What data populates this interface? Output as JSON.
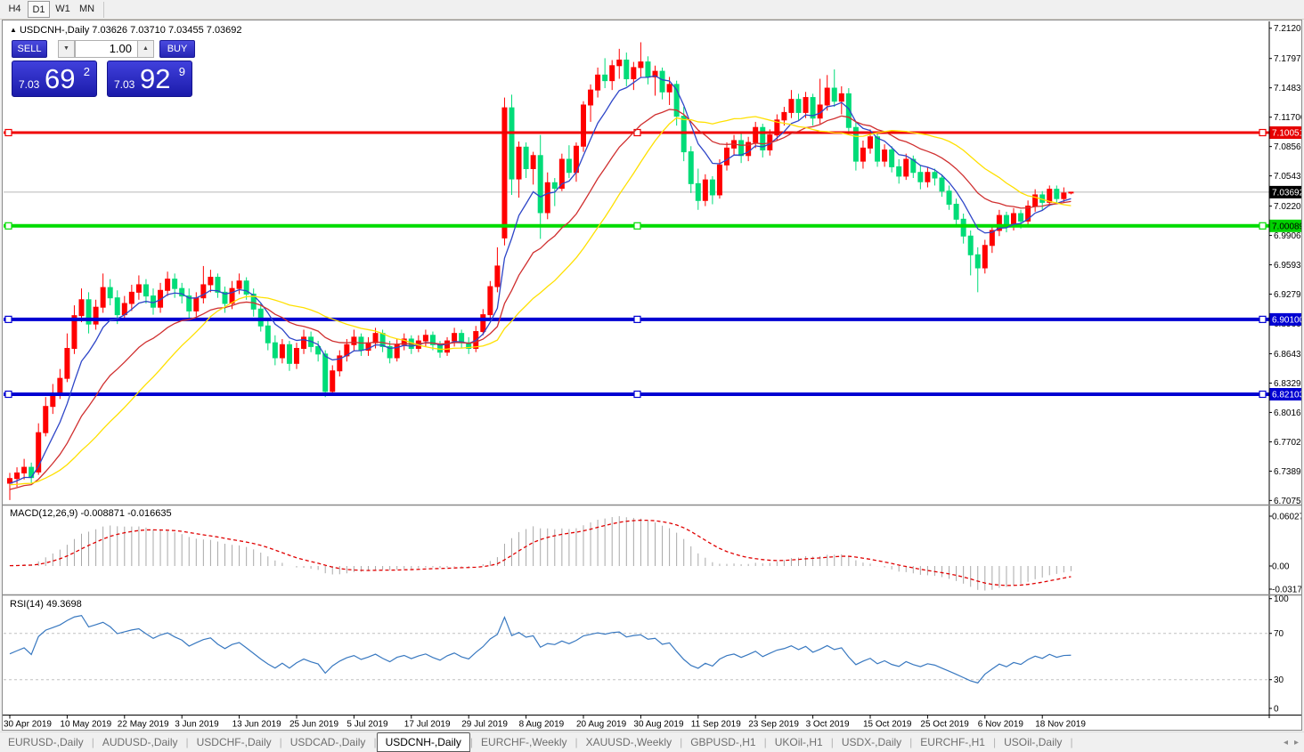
{
  "toolbar": {
    "timeframes": [
      "H4",
      "D1",
      "W1",
      "MN"
    ],
    "active": "D1"
  },
  "chart": {
    "title_arrow": "▲",
    "symbol_label": "USDCNH-,Daily",
    "ohlc": {
      "open": "7.03626",
      "high": "7.03710",
      "low": "7.03455",
      "close": "7.03692"
    },
    "trade_panel": {
      "sell_label": "SELL",
      "buy_label": "BUY",
      "volume": "1.00",
      "down_arrow": "▼",
      "up_arrow": "▲",
      "sell_price": {
        "small": "7.03",
        "big": "69",
        "sup": "2"
      },
      "buy_price": {
        "small": "7.03",
        "big": "92",
        "sup": "9"
      }
    },
    "price_axis_ticks": [
      "7.21200",
      "7.17970",
      "7.14835",
      "7.11700",
      "7.08565",
      "7.05430",
      "7.02200",
      "6.99065",
      "6.95930",
      "6.92795",
      "6.89660",
      "6.86430",
      "6.83295",
      "6.80160",
      "6.77020",
      "6.73890",
      "6.70755"
    ],
    "badges": [
      {
        "text": "7.10051",
        "bg": "#e60000",
        "fg": "#ffffff"
      },
      {
        "text": "7.03692",
        "bg": "#000000",
        "fg": "#ffffff"
      },
      {
        "text": "7.00089",
        "bg": "#00d200",
        "fg": "#000000"
      },
      {
        "text": "6.90100",
        "bg": "#0000d2",
        "fg": "#ffffff"
      },
      {
        "text": "6.82103",
        "bg": "#0000d2",
        "fg": "#ffffff"
      }
    ],
    "hlines": [
      {
        "price": 7.10051,
        "color": "#f00000",
        "w": 3
      },
      {
        "price": 7.00089,
        "color": "#00dc00",
        "w": 4
      },
      {
        "price": 6.901,
        "color": "#0000d2",
        "w": 4
      },
      {
        "price": 6.82103,
        "color": "#0000d2",
        "w": 4
      }
    ],
    "current_price": 7.03692
  },
  "chart_data": {
    "type": "candlestick",
    "symbol": "USDCNH",
    "timeframe": "Daily",
    "candle_colors": {
      "up": "#ff0000",
      "down": "#00dc78"
    },
    "moving_averages": [
      {
        "kind": "ema",
        "period": 7,
        "color": "#2e46c8"
      },
      {
        "kind": "ema",
        "period": 18,
        "color": "#d03030"
      },
      {
        "kind": "sma",
        "period": 25,
        "color": "#ffe000"
      }
    ],
    "bars": [
      [
        6.726,
        6.737,
        6.708,
        6.731
      ],
      [
        6.731,
        6.743,
        6.722,
        6.737
      ],
      [
        6.737,
        6.752,
        6.73,
        6.743
      ],
      [
        6.743,
        6.748,
        6.726,
        6.732
      ],
      [
        6.738,
        6.79,
        6.735,
        6.78
      ],
      [
        6.78,
        6.818,
        6.776,
        6.808
      ],
      [
        6.808,
        6.832,
        6.8,
        6.822
      ],
      [
        6.822,
        6.848,
        6.816,
        6.838
      ],
      [
        6.838,
        6.886,
        6.834,
        6.87
      ],
      [
        6.87,
        6.916,
        6.864,
        6.905
      ],
      [
        6.905,
        6.934,
        6.898,
        6.922
      ],
      [
        6.922,
        6.93,
        6.886,
        6.896
      ],
      [
        6.896,
        6.922,
        6.89,
        6.914
      ],
      [
        6.914,
        6.95,
        6.908,
        6.935
      ],
      [
        6.935,
        6.944,
        6.916,
        6.924
      ],
      [
        6.924,
        6.932,
        6.896,
        6.906
      ],
      [
        6.906,
        6.926,
        6.9,
        6.918
      ],
      [
        6.918,
        6.938,
        6.91,
        6.93
      ],
      [
        6.93,
        6.948,
        6.922,
        6.938
      ],
      [
        6.938,
        6.944,
        6.918,
        6.926
      ],
      [
        6.926,
        6.934,
        6.906,
        6.914
      ],
      [
        6.914,
        6.94,
        6.908,
        6.932
      ],
      [
        6.932,
        6.952,
        6.926,
        6.944
      ],
      [
        6.944,
        6.95,
        6.924,
        6.934
      ],
      [
        6.934,
        6.94,
        6.918,
        6.926
      ],
      [
        6.926,
        6.934,
        6.902,
        6.91
      ],
      [
        6.91,
        6.93,
        6.904,
        6.924
      ],
      [
        6.924,
        6.958,
        6.918,
        6.938
      ],
      [
        6.938,
        6.954,
        6.93,
        6.946
      ],
      [
        6.946,
        6.95,
        6.924,
        6.93
      ],
      [
        6.93,
        6.936,
        6.908,
        6.918
      ],
      [
        6.918,
        6.942,
        6.912,
        6.934
      ],
      [
        6.934,
        6.95,
        6.928,
        6.942
      ],
      [
        6.942,
        6.946,
        6.922,
        6.928
      ],
      [
        6.928,
        6.934,
        6.904,
        6.912
      ],
      [
        6.912,
        6.918,
        6.888,
        6.894
      ],
      [
        6.894,
        6.902,
        6.868,
        6.876
      ],
      [
        6.876,
        6.884,
        6.852,
        6.86
      ],
      [
        6.86,
        6.88,
        6.854,
        6.874
      ],
      [
        6.874,
        6.878,
        6.846,
        6.854
      ],
      [
        6.854,
        6.876,
        6.848,
        6.87
      ],
      [
        6.87,
        6.89,
        6.864,
        6.882
      ],
      [
        6.882,
        6.888,
        6.866,
        6.872
      ],
      [
        6.872,
        6.878,
        6.856,
        6.864
      ],
      [
        6.864,
        6.868,
        6.818,
        6.824
      ],
      [
        6.824,
        6.852,
        6.82,
        6.846
      ],
      [
        6.846,
        6.868,
        6.84,
        6.862
      ],
      [
        6.862,
        6.88,
        6.856,
        6.874
      ],
      [
        6.874,
        6.89,
        6.868,
        6.882
      ],
      [
        6.882,
        6.886,
        6.862,
        6.868
      ],
      [
        6.868,
        6.882,
        6.862,
        6.876
      ],
      [
        6.876,
        6.892,
        6.87,
        6.886
      ],
      [
        6.886,
        6.89,
        6.866,
        6.872
      ],
      [
        6.872,
        6.878,
        6.854,
        6.86
      ],
      [
        6.86,
        6.88,
        6.856,
        6.874
      ],
      [
        6.874,
        6.886,
        6.868,
        6.88
      ],
      [
        6.88,
        6.884,
        6.864,
        6.87
      ],
      [
        6.87,
        6.884,
        6.866,
        6.878
      ],
      [
        6.878,
        6.89,
        6.872,
        6.884
      ],
      [
        6.884,
        6.888,
        6.868,
        6.874
      ],
      [
        6.874,
        6.878,
        6.86,
        6.866
      ],
      [
        6.866,
        6.882,
        6.862,
        6.878
      ],
      [
        6.878,
        6.892,
        6.872,
        6.886
      ],
      [
        6.886,
        6.89,
        6.87,
        6.876
      ],
      [
        6.876,
        6.882,
        6.864,
        6.87
      ],
      [
        6.87,
        6.894,
        6.866,
        6.888
      ],
      [
        6.888,
        6.912,
        6.884,
        6.906
      ],
      [
        6.906,
        6.942,
        6.9,
        6.936
      ],
      [
        6.936,
        6.978,
        6.93,
        6.958
      ],
      [
        6.988,
        7.138,
        6.98,
        7.127
      ],
      [
        7.127,
        7.141,
        7.034,
        7.051
      ],
      [
        7.051,
        7.091,
        7.031,
        7.085
      ],
      [
        7.085,
        7.09,
        7.052,
        7.062
      ],
      [
        7.062,
        7.08,
        7.045,
        7.076
      ],
      [
        7.076,
        7.098,
        6.987,
        7.015
      ],
      [
        7.015,
        7.058,
        7.008,
        7.047
      ],
      [
        7.047,
        7.052,
        7.022,
        7.041
      ],
      [
        7.041,
        7.078,
        7.038,
        7.072
      ],
      [
        7.072,
        7.087,
        7.052,
        7.058
      ],
      [
        7.058,
        7.09,
        7.048,
        7.086
      ],
      [
        7.086,
        7.134,
        7.08,
        7.13
      ],
      [
        7.13,
        7.152,
        7.112,
        7.146
      ],
      [
        7.146,
        7.17,
        7.138,
        7.162
      ],
      [
        7.162,
        7.18,
        7.148,
        7.156
      ],
      [
        7.156,
        7.178,
        7.146,
        7.172
      ],
      [
        7.172,
        7.19,
        7.158,
        7.178
      ],
      [
        7.178,
        7.186,
        7.15,
        7.158
      ],
      [
        7.158,
        7.176,
        7.146,
        7.17
      ],
      [
        7.17,
        7.197,
        7.16,
        7.176
      ],
      [
        7.176,
        7.182,
        7.152,
        7.16
      ],
      [
        7.16,
        7.172,
        7.14,
        7.166
      ],
      [
        7.166,
        7.17,
        7.136,
        7.144
      ],
      [
        7.144,
        7.16,
        7.13,
        7.152
      ],
      [
        7.152,
        7.156,
        7.108,
        7.118
      ],
      [
        7.118,
        7.128,
        7.07,
        7.08
      ],
      [
        7.08,
        7.086,
        7.036,
        7.046
      ],
      [
        7.046,
        7.062,
        7.018,
        7.028
      ],
      [
        7.028,
        7.056,
        7.022,
        7.05
      ],
      [
        7.05,
        7.054,
        7.024,
        7.034
      ],
      [
        7.034,
        7.072,
        7.03,
        7.066
      ],
      [
        7.066,
        7.09,
        7.06,
        7.084
      ],
      [
        7.084,
        7.098,
        7.076,
        7.092
      ],
      [
        7.092,
        7.1,
        7.068,
        7.076
      ],
      [
        7.076,
        7.096,
        7.07,
        7.09
      ],
      [
        7.09,
        7.112,
        7.084,
        7.106
      ],
      [
        7.106,
        7.11,
        7.074,
        7.082
      ],
      [
        7.082,
        7.104,
        7.076,
        7.098
      ],
      [
        7.098,
        7.12,
        7.092,
        7.114
      ],
      [
        7.114,
        7.128,
        7.108,
        7.122
      ],
      [
        7.122,
        7.146,
        7.116,
        7.136
      ],
      [
        7.136,
        7.142,
        7.114,
        7.122
      ],
      [
        7.122,
        7.144,
        7.116,
        7.138
      ],
      [
        7.138,
        7.142,
        7.108,
        7.116
      ],
      [
        7.116,
        7.158,
        7.11,
        7.13
      ],
      [
        7.13,
        7.162,
        7.124,
        7.148
      ],
      [
        7.148,
        7.168,
        7.128,
        7.134
      ],
      [
        7.134,
        7.15,
        7.12,
        7.142
      ],
      [
        7.142,
        7.148,
        7.1,
        7.106
      ],
      [
        7.106,
        7.112,
        7.06,
        7.07
      ],
      [
        7.07,
        7.092,
        7.062,
        7.084
      ],
      [
        7.084,
        7.104,
        7.078,
        7.096
      ],
      [
        7.096,
        7.1,
        7.064,
        7.07
      ],
      [
        7.07,
        7.088,
        7.064,
        7.082
      ],
      [
        7.082,
        7.086,
        7.058,
        7.064
      ],
      [
        7.064,
        7.072,
        7.046,
        7.054
      ],
      [
        7.054,
        7.078,
        7.05,
        7.072
      ],
      [
        7.072,
        7.076,
        7.052,
        7.058
      ],
      [
        7.058,
        7.066,
        7.04,
        7.048
      ],
      [
        7.048,
        7.064,
        7.042,
        7.058
      ],
      [
        7.058,
        7.062,
        7.044,
        7.052
      ],
      [
        7.052,
        7.056,
        7.032,
        7.038
      ],
      [
        7.038,
        7.044,
        7.018,
        7.024
      ],
      [
        7.024,
        7.03,
        7.0,
        7.008
      ],
      [
        7.008,
        7.014,
        6.982,
        6.99
      ],
      [
        6.99,
        6.996,
        6.948,
        6.97
      ],
      [
        6.97,
        6.978,
        6.93,
        6.956
      ],
      [
        6.956,
        6.986,
        6.95,
        6.98
      ],
      [
        6.98,
        7.002,
        6.972,
        6.996
      ],
      [
        6.996,
        7.018,
        6.99,
        7.012
      ],
      [
        7.012,
        7.016,
        6.994,
        7.0
      ],
      [
        7.0,
        7.02,
        6.996,
        7.014
      ],
      [
        7.014,
        7.018,
        6.998,
        7.006
      ],
      [
        7.006,
        7.028,
        7.002,
        7.022
      ],
      [
        7.022,
        7.04,
        7.016,
        7.034
      ],
      [
        7.034,
        7.038,
        7.018,
        7.026
      ],
      [
        7.026,
        7.044,
        7.022,
        7.04
      ],
      [
        7.04,
        7.044,
        7.024,
        7.03
      ],
      [
        7.03,
        7.042,
        7.026,
        7.036
      ],
      [
        7.03626,
        7.0371,
        7.03455,
        7.03692
      ]
    ],
    "macd": {
      "label": "MACD(12,26,9)",
      "fast": 12,
      "slow": 26,
      "signal": 9,
      "value_main": "-0.008871",
      "value_signal": "-0.016635",
      "axis": [
        "0.060273",
        "0.00",
        "-0.031725"
      ],
      "hist_color": "#a8a8a8",
      "signal_color": "#e00000"
    },
    "rsi": {
      "label": "RSI(14)",
      "period": 14,
      "value": "49.3698",
      "axis": [
        "100",
        "70",
        "30",
        "0"
      ],
      "levels": [
        70,
        30
      ],
      "line_color": "#3878c0"
    }
  },
  "date_axis": {
    "labels": [
      "30 Apr 2019",
      "10 May 2019",
      "22 May 2019",
      "3 Jun 2019",
      "13 Jun 2019",
      "25 Jun 2019",
      "5 Jul 2019",
      "17 Jul 2019",
      "29 Jul 2019",
      "8 Aug 2019",
      "20 Aug 2019",
      "30 Aug 2019",
      "11 Sep 2019",
      "23 Sep 2019",
      "3 Oct 2019",
      "15 Oct 2019",
      "25 Oct 2019",
      "6 Nov 2019",
      "18 Nov 2019"
    ]
  },
  "tabs": {
    "items": [
      "EURUSD-,Daily",
      "AUDUSD-,Daily",
      "USDCHF-,Daily",
      "USDCAD-,Daily",
      "USDCNH-,Daily",
      "EURCHF-,Weekly",
      "XAUUSD-,Weekly",
      "GBPUSD-,H1",
      "UKOil-,H1",
      "USDX-,Daily",
      "EURCHF-,H1",
      "USOil-,Daily"
    ],
    "active": "USDCNH-,Daily",
    "nav_left": "◂",
    "nav_right": "▸"
  }
}
